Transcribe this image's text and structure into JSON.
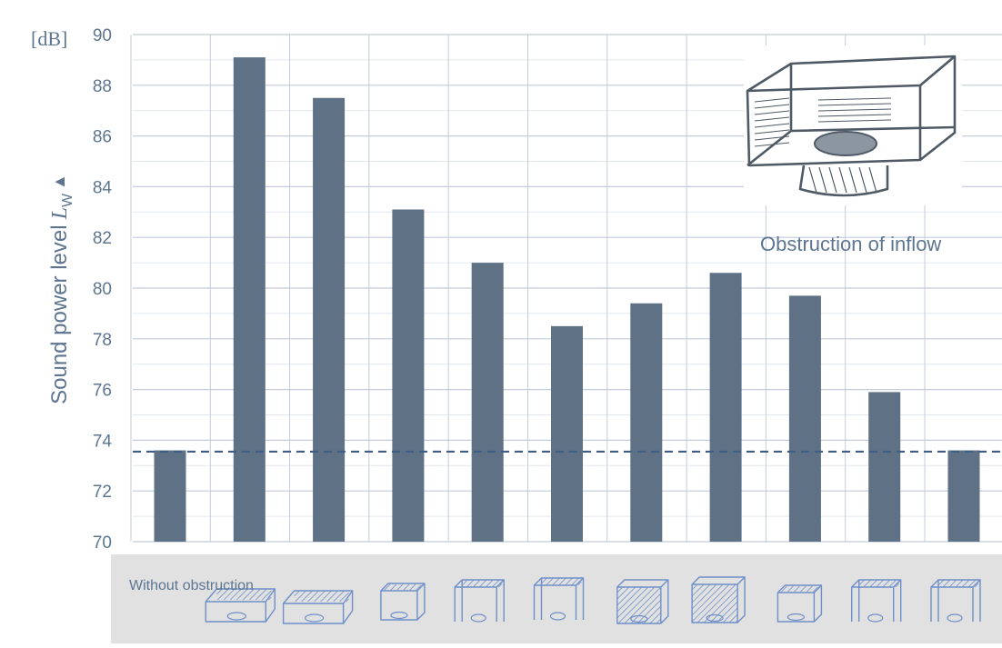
{
  "chart_data": {
    "type": "bar",
    "title": "",
    "ylabel": "Sound power level",
    "ylabel_symbol": "L",
    "ylabel_subscript": "W",
    "yunit": "[dB]",
    "ylim": [
      70,
      90
    ],
    "yticks": [
      70,
      72,
      74,
      76,
      78,
      80,
      82,
      84,
      86,
      88,
      90
    ],
    "grid": true,
    "categories": [
      "Without obstruction",
      "",
      "",
      "",
      "",
      "",
      "",
      "",
      "",
      "",
      ""
    ],
    "values": [
      73.6,
      89.1,
      87.5,
      83.1,
      81.0,
      78.5,
      79.4,
      80.6,
      79.7,
      75.9,
      73.6
    ],
    "reference_line": 73.55,
    "inset_caption": "Obstruction of inflow"
  },
  "colors": {
    "bar": "#5e7185",
    "grid": "#c3ccd8",
    "text": "#5d7591",
    "reference": "#3e5e86",
    "band": "#e1e1e1",
    "sketch": "#6e8fc9"
  }
}
